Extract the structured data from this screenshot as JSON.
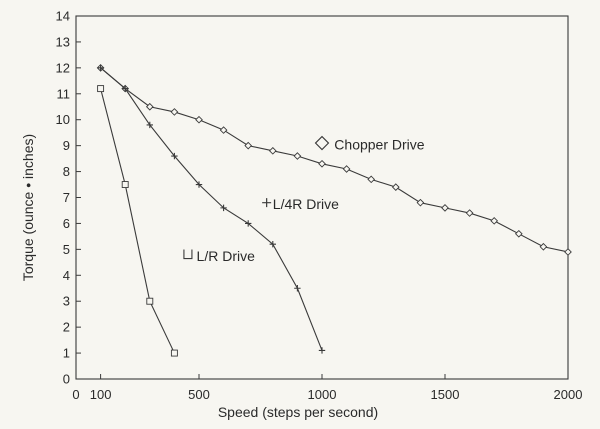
{
  "chart_data": {
    "type": "line",
    "xlabel": "Speed (steps per second)",
    "ylabel": "Torque (ounce • inches)",
    "xlim": [
      0,
      2000
    ],
    "ylim": [
      0,
      14
    ],
    "x_ticks": [
      {
        "value": 0,
        "label": "0"
      },
      {
        "value": 100,
        "label": "100"
      },
      {
        "value": 500,
        "label": "500"
      },
      {
        "value": 1000,
        "label": "1000"
      },
      {
        "value": 1500,
        "label": "1500"
      },
      {
        "value": 2000,
        "label": "2000"
      }
    ],
    "y_ticks": [
      0,
      1,
      2,
      3,
      4,
      5,
      6,
      7,
      8,
      9,
      10,
      11,
      12,
      13,
      14
    ],
    "grid": false,
    "series": [
      {
        "name": "Chopper Drive",
        "marker": "diamond",
        "annotation": "Chopper Drive",
        "annotation_symbol": "◇",
        "x": [
          100,
          200,
          300,
          400,
          500,
          600,
          700,
          800,
          900,
          1000,
          1100,
          1200,
          1300,
          1400,
          1500,
          1600,
          1700,
          1800,
          1900,
          2000
        ],
        "y": [
          12.0,
          11.2,
          10.5,
          10.3,
          10.0,
          9.6,
          9.0,
          8.8,
          8.6,
          8.3,
          8.1,
          7.7,
          7.4,
          6.8,
          6.6,
          6.4,
          6.1,
          5.6,
          5.1,
          4.9
        ]
      },
      {
        "name": "L/4R Drive",
        "marker": "plus",
        "annotation": "L/4R Drive",
        "annotation_symbol": "+",
        "x": [
          100,
          200,
          300,
          400,
          500,
          600,
          700,
          800,
          900,
          1000
        ],
        "y": [
          12.0,
          11.2,
          9.8,
          8.6,
          7.5,
          6.6,
          6.0,
          5.2,
          3.5,
          1.1
        ]
      },
      {
        "name": "L/R Drive",
        "marker": "square",
        "annotation": "L/R Drive",
        "annotation_symbol": "□",
        "x": [
          100,
          200,
          300,
          400
        ],
        "y": [
          11.2,
          7.5,
          3.0,
          1.0
        ]
      }
    ]
  }
}
